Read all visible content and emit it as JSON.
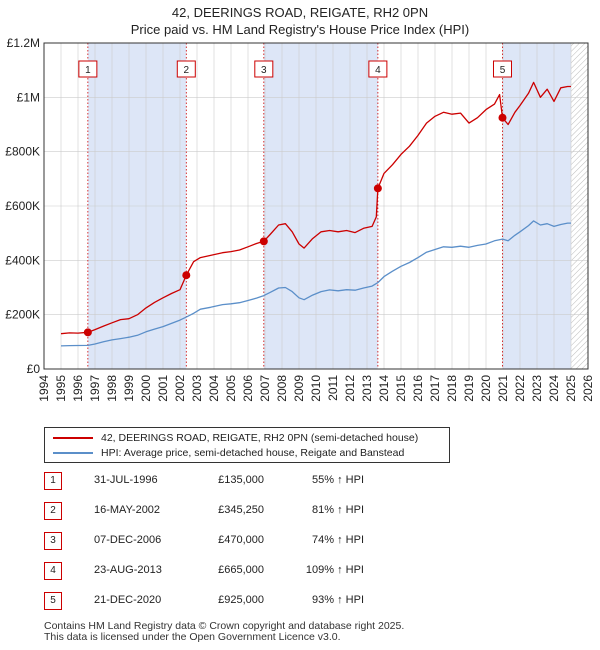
{
  "title": "42, DEERINGS ROAD, REIGATE, RH2 0PN",
  "subtitle": "Price paid vs. HM Land Registry's House Price Index (HPI)",
  "legend": {
    "property": "42, DEERINGS ROAD, REIGATE, RH2 0PN (semi-detached house)",
    "hpi": "HPI: Average price, semi-detached house, Reigate and Banstead"
  },
  "sales": [
    {
      "num": "1",
      "date": "31-JUL-1996",
      "price": "£135,000",
      "hpi": "55% ↑ HPI"
    },
    {
      "num": "2",
      "date": "16-MAY-2002",
      "price": "£345,250",
      "hpi": "81% ↑ HPI"
    },
    {
      "num": "3",
      "date": "07-DEC-2006",
      "price": "£470,000",
      "hpi": "74% ↑ HPI"
    },
    {
      "num": "4",
      "date": "23-AUG-2013",
      "price": "£665,000",
      "hpi": "109% ↑ HPI"
    },
    {
      "num": "5",
      "date": "21-DEC-2020",
      "price": "£925,000",
      "hpi": "93% ↑ HPI"
    }
  ],
  "footer": {
    "line1": "Contains HM Land Registry data © Crown copyright and database right 2025.",
    "line2": "This data is licensed under the Open Government Licence v3.0."
  },
  "colors": {
    "property_line": "#cc0000",
    "hpi_line": "#5b8fc9",
    "shade": "#dde6f7",
    "grid": "#cccccc"
  },
  "chart_data": {
    "type": "line",
    "xlim": [
      1994,
      2026
    ],
    "ylim": [
      0,
      1200000
    ],
    "x_ticks": [
      "1994",
      "1995",
      "1996",
      "1997",
      "1998",
      "1999",
      "2000",
      "2001",
      "2002",
      "2003",
      "2004",
      "2005",
      "2006",
      "2007",
      "2008",
      "2009",
      "2010",
      "2011",
      "2012",
      "2013",
      "2014",
      "2015",
      "2016",
      "2017",
      "2018",
      "2019",
      "2020",
      "2021",
      "2022",
      "2023",
      "2024",
      "2025",
      "2026"
    ],
    "y_ticks": [
      {
        "value": 0,
        "label": "£0"
      },
      {
        "value": 200000,
        "label": "£200K"
      },
      {
        "value": 400000,
        "label": "£400K"
      },
      {
        "value": 600000,
        "label": "£600K"
      },
      {
        "value": 800000,
        "label": "£800K"
      },
      {
        "value": 1000000,
        "label": "£1M"
      },
      {
        "value": 1200000,
        "label": "£1.2M"
      }
    ],
    "grid": true,
    "shaded_ranges": [
      [
        1996.58,
        2002.37
      ],
      [
        2006.93,
        2013.64
      ],
      [
        2020.97,
        2025.0
      ]
    ],
    "hatched_range": [
      2025.0,
      2026.0
    ],
    "sale_markers": [
      {
        "label": "1",
        "x": 1996.58,
        "y": 135000
      },
      {
        "label": "2",
        "x": 2002.37,
        "y": 345250
      },
      {
        "label": "3",
        "x": 2006.93,
        "y": 470000
      },
      {
        "label": "4",
        "x": 2013.64,
        "y": 665000
      },
      {
        "label": "5",
        "x": 2020.97,
        "y": 925000
      }
    ],
    "series": [
      {
        "name": "42, DEERINGS ROAD, REIGATE, RH2 0PN (semi-detached house)",
        "points": [
          [
            1995.0,
            130000
          ],
          [
            1995.5,
            133000
          ],
          [
            1996.0,
            132000
          ],
          [
            1996.58,
            135000
          ],
          [
            1997.0,
            145000
          ],
          [
            1997.5,
            158000
          ],
          [
            1998.0,
            170000
          ],
          [
            1998.5,
            182000
          ],
          [
            1999.0,
            185000
          ],
          [
            1999.5,
            200000
          ],
          [
            2000.0,
            225000
          ],
          [
            2000.5,
            245000
          ],
          [
            2001.0,
            262000
          ],
          [
            2001.5,
            278000
          ],
          [
            2002.0,
            292000
          ],
          [
            2002.37,
            345250
          ],
          [
            2002.8,
            395000
          ],
          [
            2003.2,
            410000
          ],
          [
            2003.8,
            418000
          ],
          [
            2004.5,
            428000
          ],
          [
            2005.0,
            432000
          ],
          [
            2005.5,
            438000
          ],
          [
            2006.0,
            450000
          ],
          [
            2006.5,
            462000
          ],
          [
            2006.93,
            470000
          ],
          [
            2007.3,
            495000
          ],
          [
            2007.8,
            530000
          ],
          [
            2008.2,
            535000
          ],
          [
            2008.6,
            505000
          ],
          [
            2009.0,
            460000
          ],
          [
            2009.3,
            445000
          ],
          [
            2009.8,
            480000
          ],
          [
            2010.3,
            505000
          ],
          [
            2010.8,
            510000
          ],
          [
            2011.3,
            505000
          ],
          [
            2011.8,
            510000
          ],
          [
            2012.3,
            502000
          ],
          [
            2012.8,
            518000
          ],
          [
            2013.3,
            525000
          ],
          [
            2013.55,
            560000
          ],
          [
            2013.64,
            665000
          ],
          [
            2014.0,
            720000
          ],
          [
            2014.5,
            752000
          ],
          [
            2015.0,
            790000
          ],
          [
            2015.5,
            820000
          ],
          [
            2016.0,
            860000
          ],
          [
            2016.5,
            905000
          ],
          [
            2017.0,
            930000
          ],
          [
            2017.5,
            945000
          ],
          [
            2018.0,
            938000
          ],
          [
            2018.5,
            942000
          ],
          [
            2019.0,
            905000
          ],
          [
            2019.5,
            925000
          ],
          [
            2020.0,
            955000
          ],
          [
            2020.5,
            975000
          ],
          [
            2020.8,
            1010000
          ],
          [
            2020.97,
            925000
          ],
          [
            2021.3,
            900000
          ],
          [
            2021.7,
            945000
          ],
          [
            2022.0,
            970000
          ],
          [
            2022.5,
            1015000
          ],
          [
            2022.8,
            1055000
          ],
          [
            2023.2,
            1000000
          ],
          [
            2023.6,
            1030000
          ],
          [
            2024.0,
            985000
          ],
          [
            2024.4,
            1035000
          ],
          [
            2024.8,
            1040000
          ],
          [
            2025.0,
            1040000
          ]
        ]
      },
      {
        "name": "HPI: Average price, semi-detached house, Reigate and Banstead",
        "points": [
          [
            1995.0,
            85000
          ],
          [
            1995.5,
            86000
          ],
          [
            1996.0,
            86500
          ],
          [
            1996.58,
            87000
          ],
          [
            1997.0,
            92000
          ],
          [
            1997.5,
            100000
          ],
          [
            1998.0,
            107000
          ],
          [
            1998.5,
            112000
          ],
          [
            1999.0,
            117000
          ],
          [
            1999.5,
            124000
          ],
          [
            2000.0,
            137000
          ],
          [
            2000.5,
            147000
          ],
          [
            2001.0,
            156000
          ],
          [
            2001.5,
            168000
          ],
          [
            2002.0,
            180000
          ],
          [
            2002.37,
            191000
          ],
          [
            2002.8,
            205000
          ],
          [
            2003.2,
            220000
          ],
          [
            2003.8,
            227000
          ],
          [
            2004.5,
            237000
          ],
          [
            2005.0,
            240000
          ],
          [
            2005.5,
            244000
          ],
          [
            2006.0,
            252000
          ],
          [
            2006.5,
            261000
          ],
          [
            2006.93,
            270000
          ],
          [
            2007.3,
            282000
          ],
          [
            2007.8,
            298000
          ],
          [
            2008.2,
            300000
          ],
          [
            2008.6,
            285000
          ],
          [
            2009.0,
            262000
          ],
          [
            2009.3,
            255000
          ],
          [
            2009.8,
            272000
          ],
          [
            2010.3,
            285000
          ],
          [
            2010.8,
            291000
          ],
          [
            2011.3,
            288000
          ],
          [
            2011.8,
            292000
          ],
          [
            2012.3,
            290000
          ],
          [
            2012.8,
            298000
          ],
          [
            2013.3,
            305000
          ],
          [
            2013.64,
            318000
          ],
          [
            2014.0,
            340000
          ],
          [
            2014.5,
            360000
          ],
          [
            2015.0,
            378000
          ],
          [
            2015.5,
            392000
          ],
          [
            2016.0,
            410000
          ],
          [
            2016.5,
            430000
          ],
          [
            2017.0,
            440000
          ],
          [
            2017.5,
            450000
          ],
          [
            2018.0,
            448000
          ],
          [
            2018.5,
            452000
          ],
          [
            2019.0,
            448000
          ],
          [
            2019.5,
            455000
          ],
          [
            2020.0,
            460000
          ],
          [
            2020.5,
            472000
          ],
          [
            2020.97,
            478000
          ],
          [
            2021.3,
            472000
          ],
          [
            2021.7,
            492000
          ],
          [
            2022.0,
            505000
          ],
          [
            2022.5,
            528000
          ],
          [
            2022.8,
            545000
          ],
          [
            2023.2,
            530000
          ],
          [
            2023.6,
            535000
          ],
          [
            2024.0,
            525000
          ],
          [
            2024.4,
            532000
          ],
          [
            2024.8,
            537000
          ],
          [
            2025.0,
            537000
          ]
        ]
      }
    ]
  }
}
